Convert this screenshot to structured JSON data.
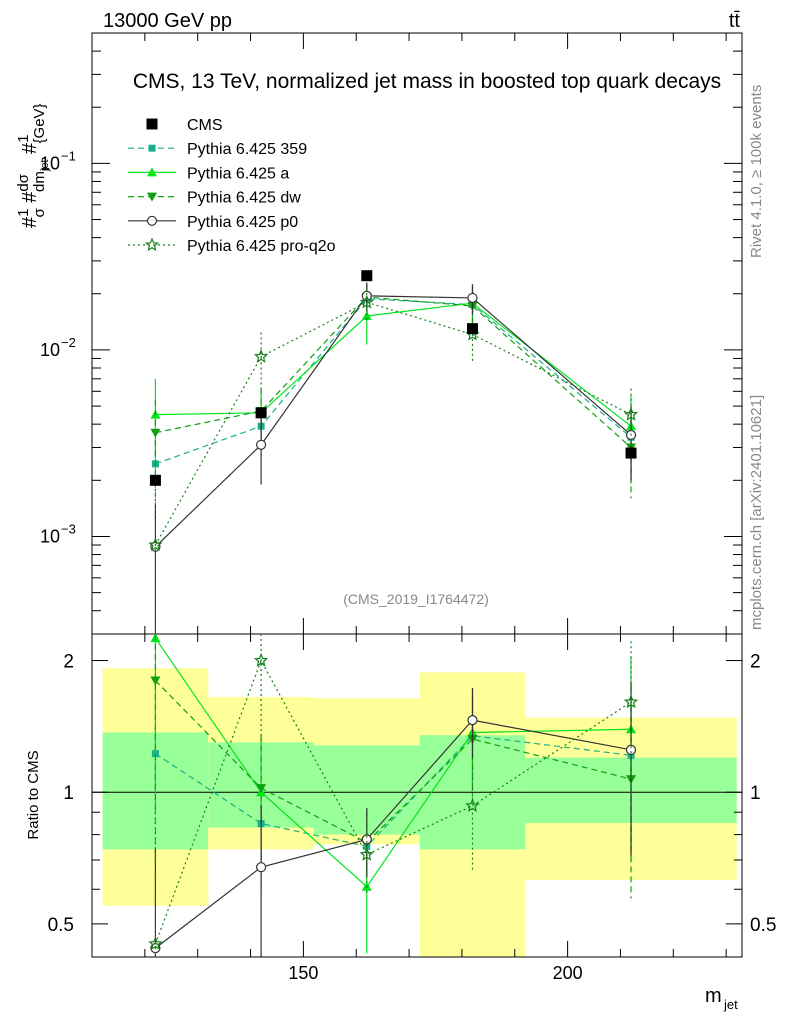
{
  "header": {
    "energy_label": "13000 GeV pp",
    "process_label": "tt̄",
    "title": "CMS, 13 TeV, normalized jet mass in boosted top quark decays",
    "side_label_top": "Rivet 4.1.0, ≥ 100k events",
    "side_label_bottom": "mcplots.cern.ch [arXiv:2401.10621]",
    "analysis_id": "(CMS_2019_I1764472)"
  },
  "axes": {
    "ylabel_main": "#1/σ #dσ/dm_jet #1/{GeV}",
    "ylabel_ratio": "Ratio to CMS",
    "xlabel": "m_jet",
    "xlabel_main": "m",
    "xlabel_sub": "jet",
    "main_ytick_labels": [
      {
        "value": 0.1,
        "base": "10",
        "exp": "−1"
      },
      {
        "value": 0.01,
        "base": "10",
        "exp": "−2"
      },
      {
        "value": 0.001,
        "base": "10",
        "exp": "−3"
      }
    ],
    "ratio_ytick_labels": [
      {
        "value": 2,
        "label": "2"
      },
      {
        "value": 1,
        "label": "1"
      },
      {
        "value": 0.5,
        "label": "0.5"
      }
    ],
    "xtick_labels": [
      {
        "value": 150,
        "label": "150"
      },
      {
        "value": 200,
        "label": "200"
      }
    ]
  },
  "legend": {
    "items": [
      "CMS",
      "Pythia 6.425 359",
      "Pythia 6.425 a",
      "Pythia 6.425 dw",
      "Pythia 6.425 p0",
      "Pythia 6.425 pro-q2o"
    ]
  },
  "colors": {
    "data": "#000000",
    "p359": "#19b08c",
    "a": "#00e61a",
    "dw": "#0ea00e",
    "p0": "#333333",
    "q2o": "#17801a",
    "band_yellow": "#ffff99",
    "band_green": "#99ff99"
  },
  "chart_data": {
    "type": "line",
    "title": "CMS, 13 TeV, normalized jet mass in boosted top quark decays",
    "xlabel": "m_jet",
    "ylabel": "1/σ dσ/dm_jet [1/GeV]",
    "xlim": [
      110,
      233
    ],
    "ylim_main": [
      0.0003,
      0.5
    ],
    "yscale_main": "log",
    "ratio_ylabel": "Ratio to CMS",
    "ratio_ylim": [
      0.42,
      2.3
    ],
    "yscale_ratio": "log",
    "bins": [
      {
        "lo": 112,
        "hi": 132,
        "x": 122
      },
      {
        "lo": 132,
        "hi": 152,
        "x": 142
      },
      {
        "lo": 152,
        "hi": 172,
        "x": 162
      },
      {
        "lo": 172,
        "hi": 192,
        "x": 182
      },
      {
        "lo": 192,
        "hi": 232,
        "x": 212
      }
    ],
    "cms": {
      "name": "CMS",
      "values": [
        0.002,
        0.0046,
        0.025,
        0.013,
        0.0028
      ],
      "band_total": [
        [
          0.55,
          1.92
        ],
        [
          0.74,
          1.65
        ],
        [
          0.76,
          1.64
        ],
        [
          0.4,
          1.88
        ],
        [
          0.63,
          1.48
        ]
      ],
      "band_inner": [
        [
          0.74,
          1.37
        ],
        [
          0.83,
          1.3
        ],
        [
          0.8,
          1.28
        ],
        [
          0.74,
          1.35
        ],
        [
          0.85,
          1.2
        ]
      ]
    },
    "series": [
      {
        "key": "p359",
        "name": "Pythia 6.425 359",
        "style": "dashed",
        "marker": "square",
        "values": [
          0.00245,
          0.0039,
          0.0188,
          0.0175,
          0.0034
        ],
        "errors": [
          0.0012,
          0.0012,
          0.0025,
          0.0035,
          0.0015
        ]
      },
      {
        "key": "a",
        "name": "Pythia 6.425 a",
        "style": "solid",
        "marker": "triangle-up",
        "values": [
          0.0045,
          0.0046,
          0.0152,
          0.0178,
          0.0039
        ],
        "errors": [
          0.0025,
          0.0015,
          0.0045,
          0.0045,
          0.0018
        ]
      },
      {
        "key": "dw",
        "name": "Pythia 6.425 dw",
        "style": "dashed",
        "marker": "triangle-down",
        "values": [
          0.0036,
          0.0047,
          0.0192,
          0.0172,
          0.003
        ],
        "errors": [
          0.0018,
          0.0015,
          0.0035,
          0.0045,
          0.0014
        ]
      },
      {
        "key": "p0",
        "name": "Pythia 6.425 p0",
        "style": "solid",
        "marker": "circle-open",
        "values": [
          0.00088,
          0.0031,
          0.0195,
          0.019,
          0.0035
        ],
        "errors": [
          0.0006,
          0.0012,
          0.0035,
          0.0035,
          0.0015
        ]
      },
      {
        "key": "q2o",
        "name": "Pythia 6.425 pro-q2o",
        "style": "dotted",
        "marker": "star-open",
        "values": [
          0.0009,
          0.0092,
          0.018,
          0.0121,
          0.0045
        ],
        "errors": [
          0.0009,
          0.0032,
          0.0035,
          0.0035,
          0.0017
        ]
      }
    ]
  }
}
